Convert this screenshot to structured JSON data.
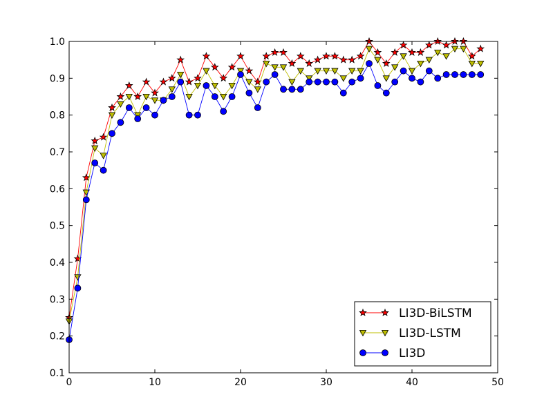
{
  "chart_data": {
    "type": "line",
    "title": "",
    "xlabel": "",
    "ylabel": "",
    "xlim": [
      0,
      50
    ],
    "ylim": [
      0.1,
      1.0
    ],
    "xticks": [
      "0",
      "10",
      "20",
      "30",
      "40",
      "50"
    ],
    "yticks": [
      "0.1",
      "0.2",
      "0.3",
      "0.4",
      "0.5",
      "0.6",
      "0.7",
      "0.8",
      "0.9",
      "1.0"
    ],
    "grid": false,
    "legend_position": "lower-right",
    "x": [
      0,
      1,
      2,
      3,
      4,
      5,
      6,
      7,
      8,
      9,
      10,
      11,
      12,
      13,
      14,
      15,
      16,
      17,
      18,
      19,
      20,
      21,
      22,
      23,
      24,
      25,
      26,
      27,
      28,
      29,
      30,
      31,
      32,
      33,
      34,
      35,
      36,
      37,
      38,
      39,
      40,
      41,
      42,
      43,
      44,
      45,
      46,
      47,
      48
    ],
    "series": [
      {
        "name": "LI3D-BiLSTM",
        "color": "#ff0000",
        "marker": "star",
        "values": [
          0.25,
          0.41,
          0.63,
          0.73,
          0.74,
          0.82,
          0.85,
          0.88,
          0.85,
          0.89,
          0.86,
          0.89,
          0.9,
          0.95,
          0.89,
          0.9,
          0.96,
          0.93,
          0.9,
          0.93,
          0.96,
          0.92,
          0.89,
          0.96,
          0.97,
          0.97,
          0.94,
          0.96,
          0.94,
          0.95,
          0.96,
          0.96,
          0.95,
          0.95,
          0.96,
          1.0,
          0.97,
          0.94,
          0.97,
          0.99,
          0.97,
          0.97,
          0.99,
          1.0,
          0.99,
          1.0,
          1.0,
          0.96,
          0.98
        ]
      },
      {
        "name": "LI3D-LSTM",
        "color": "#bfbf00",
        "marker": "triangle-down",
        "values": [
          0.24,
          0.36,
          0.59,
          0.71,
          0.69,
          0.8,
          0.83,
          0.85,
          0.8,
          0.85,
          0.84,
          0.84,
          0.87,
          0.91,
          0.85,
          0.88,
          0.92,
          0.88,
          0.85,
          0.88,
          0.92,
          0.89,
          0.87,
          0.94,
          0.93,
          0.93,
          0.89,
          0.92,
          0.9,
          0.92,
          0.92,
          0.92,
          0.9,
          0.92,
          0.92,
          0.98,
          0.95,
          0.9,
          0.93,
          0.96,
          0.92,
          0.94,
          0.95,
          0.97,
          0.96,
          0.98,
          0.98,
          0.94,
          0.94
        ]
      },
      {
        "name": "LI3D",
        "color": "#0000ff",
        "marker": "circle",
        "values": [
          0.19,
          0.33,
          0.57,
          0.67,
          0.65,
          0.75,
          0.78,
          0.82,
          0.79,
          0.82,
          0.8,
          0.84,
          0.85,
          0.89,
          0.8,
          0.8,
          0.88,
          0.85,
          0.81,
          0.85,
          0.91,
          0.86,
          0.82,
          0.89,
          0.91,
          0.87,
          0.87,
          0.87,
          0.89,
          0.89,
          0.89,
          0.89,
          0.86,
          0.89,
          0.9,
          0.94,
          0.88,
          0.86,
          0.89,
          0.92,
          0.9,
          0.89,
          0.92,
          0.9,
          0.91,
          0.91,
          0.91,
          0.91,
          0.91
        ]
      }
    ]
  }
}
